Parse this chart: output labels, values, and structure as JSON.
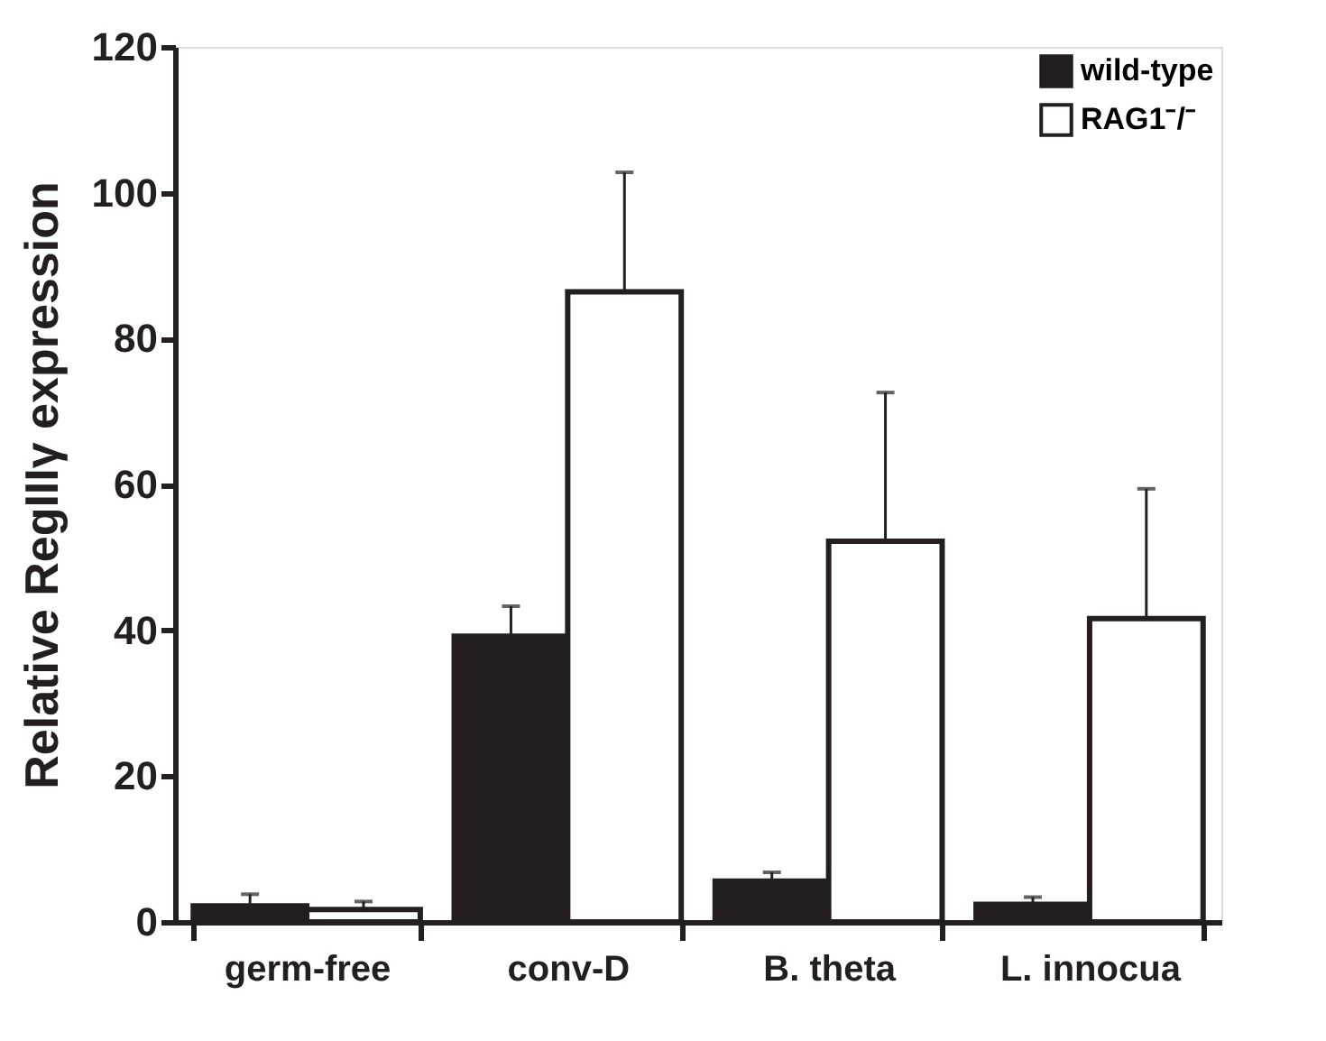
{
  "chart_data": {
    "type": "bar",
    "ylabel": "Relative RegIIIγ expression",
    "categories": [
      "germ-free",
      "conv-D",
      "B. theta",
      "L. innocua"
    ],
    "series": [
      {
        "name": "wild-type",
        "color": "#231f20",
        "values": [
          2.2,
          39.2,
          5.6,
          2.4
        ],
        "errors": [
          [
            2.2,
            3.8
          ],
          [
            39.2,
            43.3
          ],
          [
            5.6,
            6.8
          ],
          [
            2.4,
            3.4
          ]
        ]
      },
      {
        "name": "RAG1⁻/⁻",
        "color": "#ffffff",
        "values": [
          1.7,
          86.4,
          52.2,
          41.6
        ],
        "errors": [
          [
            1.7,
            2.8
          ],
          [
            86.4,
            102.8
          ],
          [
            52.2,
            72.6
          ],
          [
            41.6,
            59.4
          ]
        ]
      }
    ],
    "ylim": [
      0,
      120
    ],
    "yticks": [
      0,
      20,
      40,
      60,
      80,
      100,
      120
    ],
    "grid": false,
    "legend": "top right"
  }
}
